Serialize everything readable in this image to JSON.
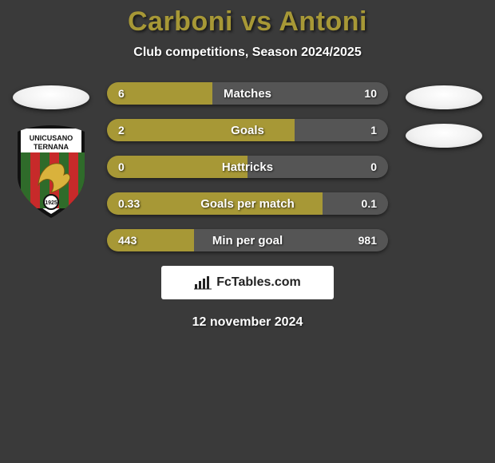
{
  "header": {
    "title": "Carboni vs Antoni",
    "title_color": "#a79836",
    "subtitle": "Club competitions, Season 2024/2025"
  },
  "colors": {
    "left_bar": "#a79836",
    "right_bar": "#555555",
    "background": "#3a3a3a"
  },
  "stats": [
    {
      "label": "Matches",
      "left_value": "6",
      "right_value": "10",
      "left_pct": 37.5,
      "right_pct": 62.5
    },
    {
      "label": "Goals",
      "left_value": "2",
      "right_value": "1",
      "left_pct": 66.7,
      "right_pct": 33.3
    },
    {
      "label": "Hattricks",
      "left_value": "0",
      "right_value": "0",
      "left_pct": 50,
      "right_pct": 50
    },
    {
      "label": "Goals per match",
      "left_value": "0.33",
      "right_value": "0.1",
      "left_pct": 76.7,
      "right_pct": 23.3
    },
    {
      "label": "Min per goal",
      "left_value": "443",
      "right_value": "981",
      "left_pct": 31.1,
      "right_pct": 68.9
    }
  ],
  "left_badge": {
    "top_text": "UNICUSANO",
    "bottom_text": "TERNANA",
    "year": "1925",
    "stripe_colors": [
      "#c72a2a",
      "#2f6b2a"
    ],
    "border_color": "#111111",
    "inner_bg": "#ffffff"
  },
  "brand": {
    "text": "FcTables.com"
  },
  "footer": {
    "date": "12 november 2024"
  }
}
